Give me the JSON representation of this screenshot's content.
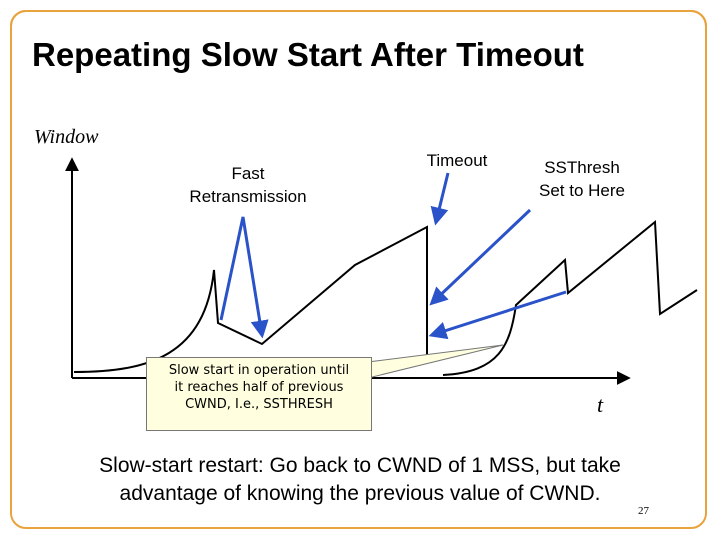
{
  "slide": {
    "title": "Repeating Slow Start After Timeout",
    "page_number": "27"
  },
  "diagram": {
    "y_axis_label": "Window",
    "x_axis_label": "t",
    "labels": {
      "fast_retransmission": [
        "Fast",
        "Retransmission"
      ],
      "timeout": "Timeout",
      "ssthresh": [
        "SSThresh",
        "Set to Here"
      ]
    },
    "callout": {
      "lines": [
        "Slow start in operation until",
        "it reaches half of previous",
        "CWND, I.e., SSTHRESH"
      ]
    }
  },
  "caption": {
    "lines": [
      "Slow-start restart: Go back to CWND of 1 MSS, but take",
      "advantage of knowing the previous value of CWND."
    ]
  },
  "colors": {
    "frame": "#e8a33d",
    "arrow": "#2a52c9",
    "callout_fill": "#ffffe0"
  }
}
